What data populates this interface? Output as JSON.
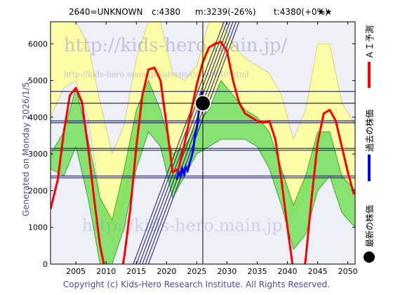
{
  "header": {
    "code": "2640=UNKNOWN",
    "current": "c:4380",
    "mean": "m:3239(-26%)",
    "target": "t:4380(+0%)",
    "stars": "★★"
  },
  "side_text": "Generated on Monday 2026/1/5.",
  "watermark": {
    "line1": "http://kids-hero.main.jp/",
    "line2": "http://kids-hero.main.jp/kabusis/code2640.html",
    "line3": "http://kids-hero.main.jp"
  },
  "legend": {
    "ai": "ＡＩ予測",
    "past": "過去の株価",
    "latest": "最新の株価"
  },
  "colors": {
    "ai": "#ff0000",
    "past": "#0000ff",
    "latest": "#000000",
    "band_green": "#66dd44",
    "band_yellow": "#ffff99",
    "trend_lines": "#1a1a66",
    "frame": "#000000"
  },
  "copyright": "Copyright (c) Kids-Hero Research Institute. All Rights Reserved.",
  "chart_data": {
    "type": "line",
    "xlim": [
      2000.8,
      2051.2
    ],
    "ylim": [
      0,
      6600
    ],
    "x_ticks": [
      2005,
      2010,
      2015,
      2020,
      2025,
      2030,
      2035,
      2040,
      2045,
      2050
    ],
    "y_ticks": [
      0,
      1000,
      2000,
      3000,
      4000,
      5000,
      6000
    ],
    "grid": false,
    "latest_point": {
      "x": 2026.0,
      "y": 4380
    },
    "horizontal_levels": [
      4700,
      3900,
      3850,
      3150,
      3100,
      2400,
      2350
    ],
    "ai_forecast": [
      [
        2000.8,
        1500
      ],
      [
        2002,
        2300
      ],
      [
        2003,
        3600
      ],
      [
        2004,
        4600
      ],
      [
        2005,
        4800
      ],
      [
        2006,
        4400
      ],
      [
        2007,
        3200
      ],
      [
        2008,
        1800
      ],
      [
        2009,
        500
      ],
      [
        2010,
        -300
      ],
      [
        2011,
        -800
      ],
      [
        2012,
        -700
      ],
      [
        2013,
        200
      ],
      [
        2014,
        1500
      ],
      [
        2015,
        3200
      ],
      [
        2016,
        4600
      ],
      [
        2017,
        5300
      ],
      [
        2018,
        5350
      ],
      [
        2019,
        5000
      ],
      [
        2020,
        3800
      ],
      [
        2021,
        2500
      ],
      [
        2022,
        2600
      ],
      [
        2023,
        3300
      ],
      [
        2024,
        4100
      ],
      [
        2025,
        4900
      ],
      [
        2026,
        5500
      ],
      [
        2027,
        5900
      ],
      [
        2028,
        6000
      ],
      [
        2029,
        6050
      ],
      [
        2030,
        5800
      ],
      [
        2031,
        5000
      ],
      [
        2032,
        4400
      ],
      [
        2033,
        4100
      ],
      [
        2034,
        4000
      ],
      [
        2035,
        3900
      ],
      [
        2036,
        3850
      ],
      [
        2037,
        3900
      ],
      [
        2038,
        3400
      ],
      [
        2039,
        2300
      ],
      [
        2040,
        1000
      ],
      [
        2041,
        -200
      ],
      [
        2042,
        -800
      ],
      [
        2043,
        100
      ],
      [
        2044,
        1800
      ],
      [
        2045,
        3300
      ],
      [
        2046,
        4100
      ],
      [
        2047,
        4200
      ],
      [
        2048,
        3900
      ],
      [
        2049,
        3200
      ],
      [
        2050,
        2500
      ],
      [
        2051,
        1900
      ]
    ],
    "past_price": [
      [
        2021.7,
        2300
      ],
      [
        2022.0,
        2500
      ],
      [
        2022.3,
        2400
      ],
      [
        2022.6,
        2600
      ],
      [
        2022.9,
        2450
      ],
      [
        2023.2,
        2650
      ],
      [
        2023.5,
        2550
      ],
      [
        2023.8,
        2750
      ],
      [
        2024.1,
        2900
      ],
      [
        2024.4,
        3100
      ],
      [
        2024.7,
        3500
      ],
      [
        2025.0,
        3700
      ],
      [
        2025.3,
        4100
      ],
      [
        2025.6,
        4500
      ],
      [
        2025.9,
        4700
      ],
      [
        2026.0,
        4380
      ]
    ],
    "trend_lines": [
      [
        [
          2014.5,
          0
        ],
        [
          2029.5,
          6600
        ]
      ],
      [
        [
          2015.0,
          0
        ],
        [
          2030.0,
          6600
        ]
      ],
      [
        [
          2015.5,
          0
        ],
        [
          2030.5,
          6600
        ]
      ],
      [
        [
          2016.0,
          0
        ],
        [
          2031.0,
          6600
        ]
      ],
      [
        [
          2016.5,
          0
        ],
        [
          2031.5,
          6600
        ]
      ],
      [
        [
          2017.0,
          0
        ],
        [
          2032.0,
          6600
        ]
      ]
    ],
    "green_band": [
      [
        2000.8,
        2600,
        3000
      ],
      [
        2003,
        2400,
        3600
      ],
      [
        2005,
        3200,
        4800
      ],
      [
        2007,
        1800,
        3400
      ],
      [
        2009,
        0,
        1800
      ],
      [
        2011,
        0,
        1200
      ],
      [
        2013,
        1000,
        2600
      ],
      [
        2015,
        2600,
        4200
      ],
      [
        2017,
        3600,
        5000
      ],
      [
        2019,
        3200,
        4200
      ],
      [
        2021,
        1800,
        3000
      ],
      [
        2023,
        2400,
        3200
      ],
      [
        2025,
        3000,
        3800
      ],
      [
        2027,
        3200,
        4200
      ],
      [
        2029,
        3400,
        5000
      ],
      [
        2031,
        3400,
        4600
      ],
      [
        2033,
        3400,
        4200
      ],
      [
        2035,
        3200,
        4000
      ],
      [
        2037,
        2600,
        3600
      ],
      [
        2039,
        1600,
        2600
      ],
      [
        2041,
        400,
        1600
      ],
      [
        2043,
        800,
        2400
      ],
      [
        2045,
        2000,
        3600
      ],
      [
        2047,
        2400,
        3600
      ],
      [
        2049,
        1400,
        2400
      ],
      [
        2051.2,
        1000,
        2000
      ]
    ],
    "yellow_band": [
      [
        2000.8,
        4000,
        6600
      ],
      [
        2003,
        4800,
        6600
      ],
      [
        2005,
        5000,
        6600
      ],
      [
        2007,
        4000,
        6000
      ],
      [
        2009,
        1800,
        4400
      ],
      [
        2011,
        600,
        3000
      ],
      [
        2013,
        1800,
        3800
      ],
      [
        2015,
        3600,
        5600
      ],
      [
        2017,
        4800,
        6600
      ],
      [
        2019,
        4600,
        6600
      ],
      [
        2021,
        2800,
        5200
      ],
      [
        2023,
        3000,
        5000
      ],
      [
        2025,
        3600,
        5400
      ],
      [
        2027,
        4400,
        6600
      ],
      [
        2029,
        5000,
        6600
      ],
      [
        2031,
        4600,
        6000
      ],
      [
        2033,
        4200,
        5600
      ],
      [
        2035,
        4000,
        5400
      ],
      [
        2037,
        3600,
        5200
      ],
      [
        2039,
        2600,
        4600
      ],
      [
        2041,
        1400,
        3400
      ],
      [
        2043,
        2000,
        4200
      ],
      [
        2045,
        3400,
        6000
      ],
      [
        2047,
        3600,
        6000
      ],
      [
        2049,
        2400,
        4400
      ],
      [
        2051.2,
        2000,
        3800
      ]
    ]
  }
}
